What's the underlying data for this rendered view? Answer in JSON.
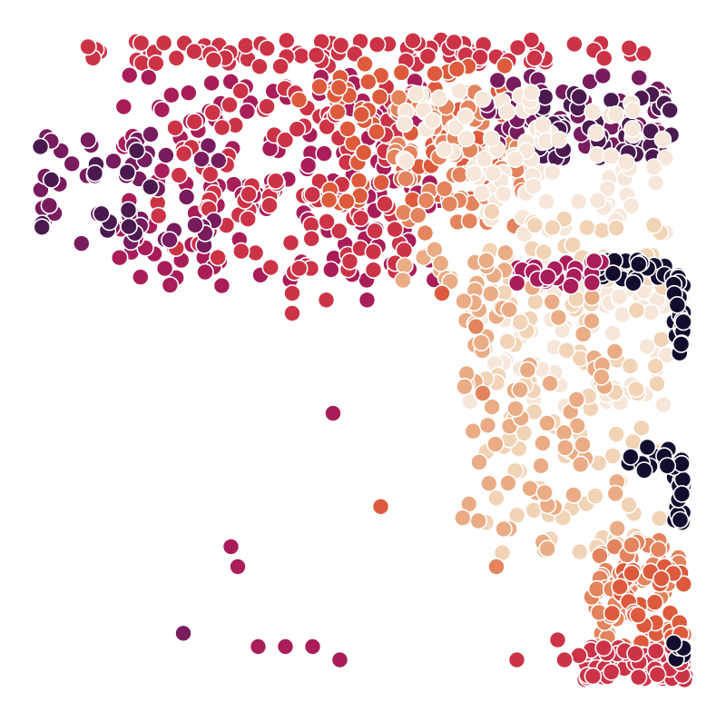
{
  "chart_data": {
    "type": "scatter",
    "title": "",
    "xlabel": "",
    "ylabel": "",
    "axes_visible": false,
    "grid": false,
    "legend": "none",
    "xlim": [
      0,
      100
    ],
    "ylim": [
      0,
      100
    ],
    "palette": [
      "#140c2c",
      "#4a1a4f",
      "#781c5e",
      "#a91d59",
      "#cc3347",
      "#dd5b3c",
      "#e3845e",
      "#eaac85",
      "#f1d3b6",
      "#f6e7da"
    ],
    "clusters": [
      {
        "name": "",
        "color": "#cc3347",
        "n": 90,
        "x": [
          10,
          92
        ],
        "y": [
          93,
          97
        ]
      },
      {
        "name": "",
        "color": "#a91d59",
        "n": 140,
        "x": [
          14,
          62
        ],
        "y": [
          60,
          92
        ]
      },
      {
        "name": "",
        "color": "#cc3347",
        "n": 110,
        "x": [
          20,
          58
        ],
        "y": [
          62,
          90
        ]
      },
      {
        "name": "",
        "color": "#781c5e",
        "n": 45,
        "x": [
          3,
          30
        ],
        "y": [
          66,
          84
        ]
      },
      {
        "name": "",
        "color": "#4a1a4f",
        "n": 12,
        "x": [
          3,
          22
        ],
        "y": [
          68,
          82
        ]
      },
      {
        "name": "",
        "color": "#dd5b3c",
        "n": 90,
        "x": [
          45,
          72
        ],
        "y": [
          72,
          94
        ]
      },
      {
        "name": "",
        "color": "#e3845e",
        "n": 70,
        "x": [
          55,
          75
        ],
        "y": [
          68,
          90
        ]
      },
      {
        "name": "",
        "color": "#781c5e",
        "n": 50,
        "x": [
          68,
          96
        ],
        "y": [
          80,
          92
        ]
      },
      {
        "name": "",
        "color": "#4a1a4f",
        "n": 55,
        "x": [
          76,
          96
        ],
        "y": [
          79,
          89
        ]
      },
      {
        "name": "",
        "color": "#f6e7da",
        "n": 150,
        "x": [
          66,
          95
        ],
        "y": [
          42,
          88
        ]
      },
      {
        "name": "",
        "color": "#f1d3b6",
        "n": 120,
        "x": [
          68,
          95
        ],
        "y": [
          20,
          72
        ]
      },
      {
        "name": "",
        "color": "#eaac85",
        "n": 70,
        "x": [
          65,
          88
        ],
        "y": [
          20,
          60
        ]
      },
      {
        "name": "",
        "color": "#e3845e",
        "n": 70,
        "x": [
          84,
          97
        ],
        "y": [
          6,
          22
        ]
      },
      {
        "name": "",
        "color": "#dd5b3c",
        "n": 50,
        "x": [
          88,
          98
        ],
        "y": [
          3,
          18
        ]
      },
      {
        "name": "",
        "color": "#cc3347",
        "n": 60,
        "x": [
          82,
          98
        ],
        "y": [
          1,
          6
        ]
      },
      {
        "name": "",
        "color": "#140c2c",
        "n": 25,
        "x": [
          84,
          97
        ],
        "y": [
          60,
          64
        ]
      },
      {
        "name": "",
        "color": "#140c2c",
        "n": 30,
        "x": [
          96,
          97.5
        ],
        "y": [
          50,
          62
        ]
      },
      {
        "name": "",
        "color": "#140c2c",
        "n": 30,
        "x": [
          96,
          97.5
        ],
        "y": [
          24,
          35
        ]
      },
      {
        "name": "",
        "color": "#140c2c",
        "n": 10,
        "x": [
          89,
          96
        ],
        "y": [
          32,
          36
        ]
      },
      {
        "name": "",
        "color": "#140c2c",
        "n": 6,
        "x": [
          96,
          97.5
        ],
        "y": [
          2,
          7
        ]
      },
      {
        "name": "",
        "color": "#a91d59",
        "n": 25,
        "x": [
          72,
          86
        ],
        "y": [
          60,
          64
        ]
      },
      {
        "name": "",
        "color": "#eaac85",
        "n": 25,
        "x": [
          56,
          72
        ],
        "y": [
          56,
          66
        ]
      },
      {
        "name": "",
        "color": "#f6e7da",
        "n": 30,
        "x": [
          56,
          76
        ],
        "y": [
          75,
          90
        ]
      }
    ],
    "points": [
      {
        "x": 10,
        "y": 96,
        "color": "#cc3347"
      },
      {
        "x": 3,
        "y": 81,
        "color": "#4a1a4f"
      },
      {
        "x": 10,
        "y": 82,
        "color": "#781c5e"
      },
      {
        "x": 11,
        "y": 77,
        "color": "#4a1a4f"
      },
      {
        "x": 16,
        "y": 69,
        "color": "#4a1a4f"
      },
      {
        "x": 22,
        "y": 67,
        "color": "#781c5e"
      },
      {
        "x": 40,
        "y": 59,
        "color": "#cc3347"
      },
      {
        "x": 45,
        "y": 58,
        "color": "#cc3347"
      },
      {
        "x": 51,
        "y": 58,
        "color": "#a91d59"
      },
      {
        "x": 62,
        "y": 59,
        "color": "#dd5b3c"
      },
      {
        "x": 40,
        "y": 56,
        "color": "#cc3347"
      },
      {
        "x": 67,
        "y": 54,
        "color": "#e3845e"
      },
      {
        "x": 68,
        "y": 44,
        "color": "#e3845e"
      },
      {
        "x": 53,
        "y": 27,
        "color": "#dd5b3c"
      },
      {
        "x": 31,
        "y": 21,
        "color": "#a91d59"
      },
      {
        "x": 32,
        "y": 18,
        "color": "#a91d59"
      },
      {
        "x": 70,
        "y": 18,
        "color": "#e3845e"
      },
      {
        "x": 24,
        "y": 8,
        "color": "#781c5e"
      },
      {
        "x": 35,
        "y": 6,
        "color": "#a91d59"
      },
      {
        "x": 39,
        "y": 6,
        "color": "#a91d59"
      },
      {
        "x": 43,
        "y": 6,
        "color": "#a91d59"
      },
      {
        "x": 47,
        "y": 4,
        "color": "#a91d59"
      },
      {
        "x": 73,
        "y": 4,
        "color": "#cc3347"
      },
      {
        "x": 80,
        "y": 4,
        "color": "#cc3347"
      },
      {
        "x": 79,
        "y": 7,
        "color": "#cc3347"
      },
      {
        "x": 87,
        "y": 11,
        "color": "#dd5b3c"
      },
      {
        "x": 46,
        "y": 41,
        "color": "#a91d59"
      },
      {
        "x": 44,
        "y": 90,
        "color": "#dd5b3c"
      },
      {
        "x": 41,
        "y": 88,
        "color": "#dd5b3c"
      }
    ]
  }
}
